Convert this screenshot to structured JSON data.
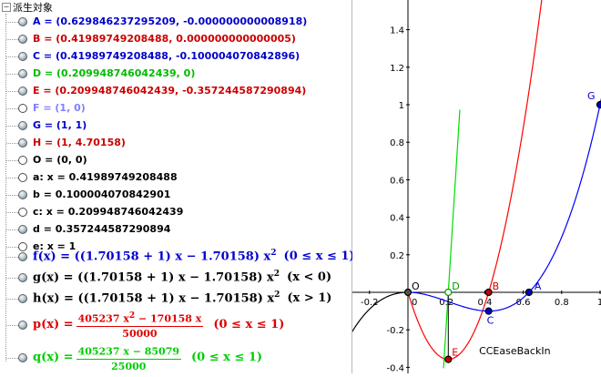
{
  "tree": {
    "root_toggle": "−",
    "root_label": "派生対象"
  },
  "objects": [
    {
      "id": "A",
      "text": "A = (0.629846237295209, -0.000000000008918)",
      "color": "#0000cc",
      "visible": true
    },
    {
      "id": "B",
      "text": "B = (0.41989749208488, 0.000000000000005)",
      "color": "#cc0000",
      "visible": true
    },
    {
      "id": "C",
      "text": "C = (0.41989749208488, -0.100004070842896)",
      "color": "#0000cc",
      "visible": true
    },
    {
      "id": "D",
      "text": "D = (0.209948746042439, 0)",
      "color": "#00bb00",
      "visible": true
    },
    {
      "id": "E",
      "text": "E = (0.209948746042439, -0.357244587290894)",
      "color": "#cc0000",
      "visible": true
    },
    {
      "id": "F",
      "text": "F = (1, 0)",
      "color": "#8080ff",
      "visible": false
    },
    {
      "id": "G",
      "text": "G = (1, 1)",
      "color": "#0000cc",
      "visible": true
    },
    {
      "id": "H",
      "text": "H = (1, 4.70158)",
      "color": "#cc0000",
      "visible": true
    },
    {
      "id": "O",
      "text": "O = (0, 0)",
      "color": "#000000",
      "visible": false
    },
    {
      "id": "a",
      "text": "a: x = 0.41989749208488",
      "color": "#000000",
      "visible": false
    },
    {
      "id": "b",
      "text": "b = 0.100004070842901",
      "color": "#000000",
      "visible": true
    },
    {
      "id": "c",
      "text": "c: x = 0.209948746042439",
      "color": "#000000",
      "visible": false
    },
    {
      "id": "d",
      "text": "d = 0.357244587290894",
      "color": "#000000",
      "visible": true
    },
    {
      "id": "e",
      "text": "e: x = 1",
      "color": "#000000",
      "visible": false
    }
  ],
  "functions": [
    {
      "id": "f",
      "lhs": "f(x) = ((1.70158 + 1) x − 1.70158) x",
      "exp": "2",
      "cond": "(0 ≤ x ≤ 1)",
      "color": "#0000cc",
      "visible": true
    },
    {
      "id": "g",
      "lhs": "g(x) = ((1.70158 + 1) x − 1.70158) x",
      "exp": "2",
      "cond": "(x < 0)",
      "color": "#000000",
      "visible": true
    },
    {
      "id": "h",
      "lhs": "h(x) = ((1.70158 + 1) x − 1.70158) x",
      "exp": "2",
      "cond": "(x > 1)",
      "color": "#000000",
      "visible": true
    }
  ],
  "fractions": [
    {
      "id": "p",
      "lhs": "p(x) =",
      "num_a": "405237 x",
      "num_exp": "2",
      "num_b": " − 170158 x",
      "den": "50000",
      "cond": "(0 ≤ x ≤ 1)",
      "color": "#dd0000",
      "visible": true
    },
    {
      "id": "q",
      "lhs": "q(x) =",
      "num_a": "405237 x − 85079",
      "num_exp": "",
      "num_b": "",
      "den": "25000",
      "cond": "(0 ≤ x ≤ 1)",
      "color": "#00cc00",
      "visible": true
    }
  ],
  "graph": {
    "caption": "CCEaseBackIn",
    "x_range": [
      -0.3,
      1.08
    ],
    "y_range": [
      -0.42,
      1.62
    ],
    "x_ticks": [
      {
        "v": -0.2,
        "label": "-0.2"
      },
      {
        "v": 0.2,
        "label": "0.2"
      },
      {
        "v": 0.4,
        "label": "0.4"
      },
      {
        "v": 0.6,
        "label": "0.6"
      },
      {
        "v": 0.8,
        "label": "0.8"
      },
      {
        "v": 1,
        "label": "1"
      }
    ],
    "y_ticks": [
      {
        "v": -0.4,
        "label": "-0.4"
      },
      {
        "v": -0.2,
        "label": "-0.2"
      },
      {
        "v": 0.2,
        "label": "0.2"
      },
      {
        "v": 0.4,
        "label": "0.4"
      },
      {
        "v": 0.6,
        "label": "0.6"
      },
      {
        "v": 0.8,
        "label": "0.8"
      },
      {
        "v": 1,
        "label": "1"
      },
      {
        "v": 1.2,
        "label": "1.2"
      },
      {
        "v": 1.4,
        "label": "1.4"
      }
    ],
    "origin_label": "0",
    "colors": {
      "f": "#0000ff",
      "g": "#000000",
      "h": "#000000",
      "p": "#ff0000",
      "q": "#00dd00",
      "vline": "#000000"
    },
    "points": [
      {
        "name": "O",
        "x": 0,
        "y": 0,
        "color": "#555555",
        "label_color": "#000000",
        "label_dx": 4,
        "label_dy": -3
      },
      {
        "name": "D",
        "x": 0.209948746042439,
        "y": 0,
        "color": "#009900",
        "label_color": "#009900",
        "label_dx": 4,
        "label_dy": -3,
        "hollow": true
      },
      {
        "name": "B",
        "x": 0.41989749208488,
        "y": 0,
        "color": "#cc0000",
        "label_color": "#cc0000",
        "label_dx": 4,
        "label_dy": -3
      },
      {
        "name": "A",
        "x": 0.629846237295209,
        "y": 0,
        "color": "#0000cc",
        "label_color": "#0000cc",
        "label_dx": 6,
        "label_dy": -3
      },
      {
        "name": "C",
        "x": 0.41989749208488,
        "y": -0.100004070842896,
        "color": "#0000cc",
        "label_color": "#0000cc",
        "label_dx": -2,
        "label_dy": 14
      },
      {
        "name": "E",
        "x": 0.209948746042439,
        "y": -0.357244587290894,
        "color": "#cc0000",
        "label_color": "#cc0000",
        "label_dx": 4,
        "label_dy": -4
      },
      {
        "name": "G",
        "x": 1,
        "y": 1,
        "color": "#0000cc",
        "label_color": "#0000cc",
        "label_dx": -14,
        "label_dy": -6
      }
    ]
  }
}
